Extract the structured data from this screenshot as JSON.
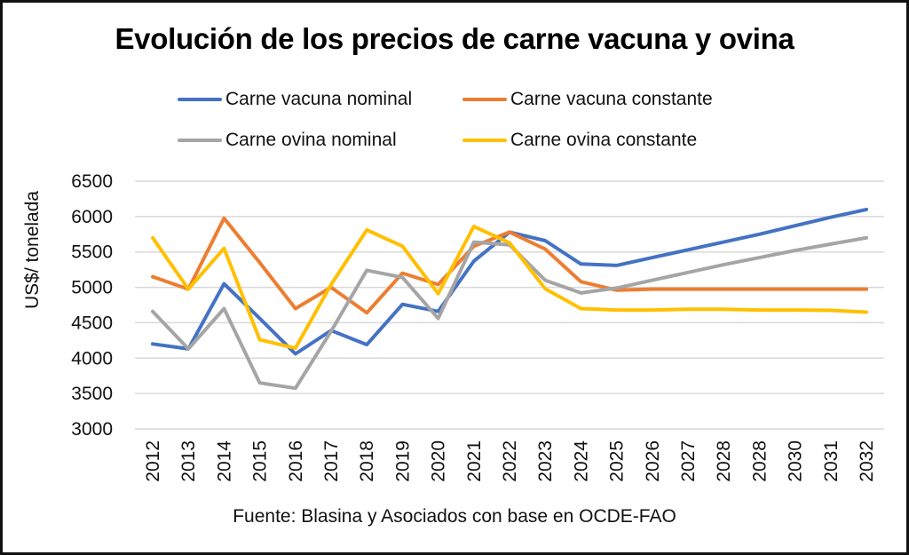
{
  "chart_data": {
    "type": "line",
    "title": "Evolución de los precios de carne vacuna y ovina",
    "xlabel": "",
    "ylabel": "US$/ tonelada",
    "source": "Fuente: Blasina y Asociados con base en OCDE-FAO",
    "x": [
      "2012",
      "2013",
      "2014",
      "2015",
      "2016",
      "2017",
      "2018",
      "2019",
      "2020",
      "2021",
      "2022",
      "2023",
      "2024",
      "2025",
      "2026",
      "2027",
      "2028",
      "2028",
      "2030",
      "2031",
      "2032"
    ],
    "ylim": [
      3000,
      6500
    ],
    "yticks": [
      3000,
      3500,
      4000,
      4500,
      5000,
      5500,
      6000,
      6500
    ],
    "grid": true,
    "legend_position": "top",
    "series": [
      {
        "name": "Carne vacuna nominal",
        "color": "#4472c4",
        "values": [
          4200,
          4130,
          5050,
          4560,
          4060,
          4390,
          4190,
          4760,
          4660,
          5370,
          5780,
          5660,
          5330,
          5310,
          5420,
          5530,
          5640,
          5750,
          5870,
          5990,
          6100
        ]
      },
      {
        "name": "Carne vacuna constante",
        "color": "#ed7d31",
        "values": [
          5150,
          4975,
          5975,
          5350,
          4700,
          5000,
          4640,
          5200,
          5040,
          5580,
          5780,
          5540,
          5080,
          4960,
          4975,
          4975,
          4975,
          4975,
          4975,
          4975,
          4975
        ]
      },
      {
        "name": "Carne ovina nominal",
        "color": "#a5a5a5",
        "values": [
          4660,
          4130,
          4700,
          3650,
          3575,
          4380,
          5240,
          5140,
          4560,
          5640,
          5600,
          5100,
          4920,
          4990,
          5100,
          5210,
          5320,
          5420,
          5520,
          5610,
          5700
        ]
      },
      {
        "name": "Carne ovina constante",
        "color": "#ffc000",
        "values": [
          5700,
          4975,
          5550,
          4260,
          4140,
          5040,
          5810,
          5580,
          4910,
          5860,
          5630,
          4980,
          4700,
          4680,
          4680,
          4690,
          4690,
          4680,
          4680,
          4675,
          4650
        ]
      }
    ]
  }
}
